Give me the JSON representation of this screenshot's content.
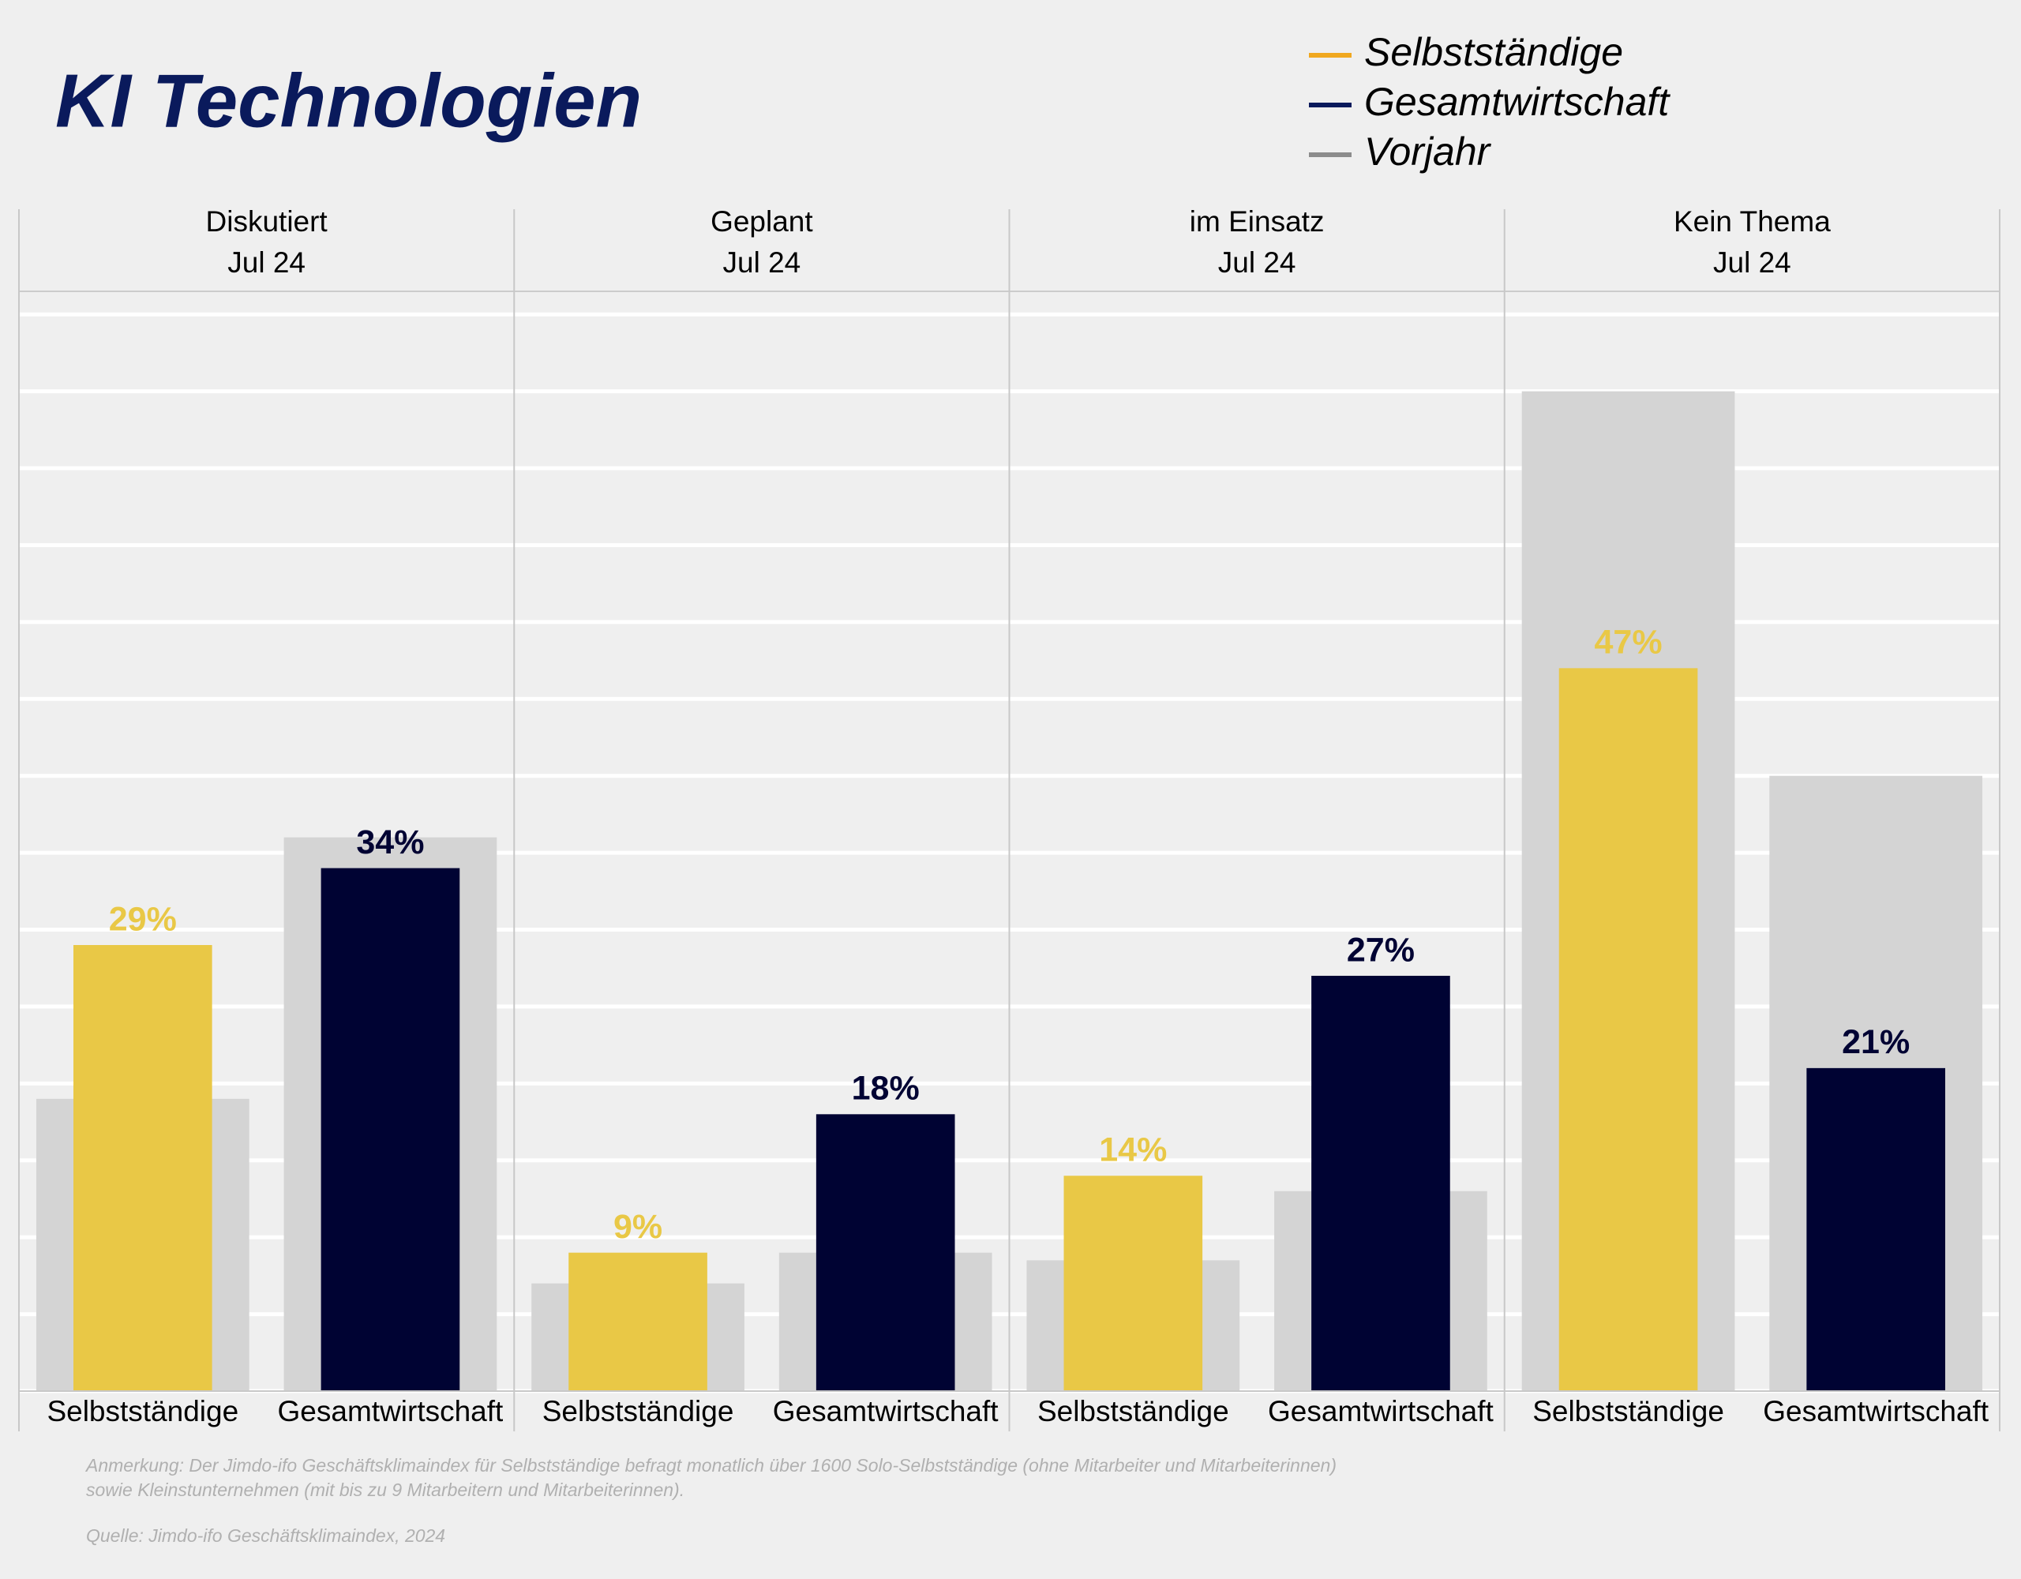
{
  "title": "KI Technologien",
  "legend": [
    {
      "name": "Selbstständige",
      "color": "#f0a820"
    },
    {
      "name": "Gesamtwirtschaft",
      "color": "#0a1a5c"
    },
    {
      "name": "Vorjahr",
      "color": "#8c8c8c"
    }
  ],
  "chart_data": [
    {
      "type": "bar",
      "title": "Diskutiert",
      "subtitle": "Jul 24",
      "categories": [
        "Selbstständige",
        "Gesamtwirtschaft"
      ],
      "values": [
        29,
        34
      ],
      "value_labels": [
        "29%",
        "34%"
      ],
      "prior_values": [
        19,
        36
      ],
      "colors": [
        "#e9c846",
        "#000333"
      ],
      "prior_color": "#d4d4d4",
      "ylim": [
        0,
        71.5
      ],
      "yticks": [
        0,
        5,
        10,
        15,
        20,
        25,
        30,
        35,
        40,
        45,
        50,
        55,
        60,
        65,
        70
      ],
      "grid": true
    },
    {
      "type": "bar",
      "title": "Geplant",
      "subtitle": "Jul 24",
      "categories": [
        "Selbstständige",
        "Gesamtwirtschaft"
      ],
      "values": [
        9,
        18
      ],
      "value_labels": [
        "9%",
        "18%"
      ],
      "prior_values": [
        7,
        9
      ],
      "colors": [
        "#e9c846",
        "#000333"
      ],
      "prior_color": "#d4d4d4",
      "ylim": [
        0,
        71.5
      ],
      "yticks": [
        0,
        5,
        10,
        15,
        20,
        25,
        30,
        35,
        40,
        45,
        50,
        55,
        60,
        65,
        70
      ],
      "grid": true
    },
    {
      "type": "bar",
      "title": "im Einsatz",
      "subtitle": "Jul 24",
      "categories": [
        "Selbstständige",
        "Gesamtwirtschaft"
      ],
      "values": [
        14,
        27
      ],
      "value_labels": [
        "14%",
        "27%"
      ],
      "prior_values": [
        8.5,
        13
      ],
      "colors": [
        "#e9c846",
        "#000333"
      ],
      "prior_color": "#d4d4d4",
      "ylim": [
        0,
        71.5
      ],
      "yticks": [
        0,
        5,
        10,
        15,
        20,
        25,
        30,
        35,
        40,
        45,
        50,
        55,
        60,
        65,
        70
      ],
      "grid": true
    },
    {
      "type": "bar",
      "title": "Kein Thema",
      "subtitle": "Jul 24",
      "categories": [
        "Selbstständige",
        "Gesamtwirtschaft"
      ],
      "values": [
        47,
        21
      ],
      "value_labels": [
        "47%",
        "21%"
      ],
      "prior_values": [
        65,
        40
      ],
      "colors": [
        "#e9c846",
        "#000333"
      ],
      "prior_color": "#d4d4d4",
      "ylim": [
        0,
        71.5
      ],
      "yticks": [
        0,
        5,
        10,
        15,
        20,
        25,
        30,
        35,
        40,
        45,
        50,
        55,
        60,
        65,
        70
      ],
      "grid": true
    }
  ],
  "footnote": [
    "Anmerkung: Der Jimdo-ifo Geschäftsklimaindex für Selbstständige befragt monatlich über 1600 Solo-Selbstständige (ohne Mitarbeiter und Mitarbeiterinnen)",
    "sowie Kleinstunternehmen (mit bis zu 9 Mitarbeitern und Mitarbeiterinnen)."
  ],
  "source": "Quelle: Jimdo-ifo Geschäftsklimaindex, 2024"
}
